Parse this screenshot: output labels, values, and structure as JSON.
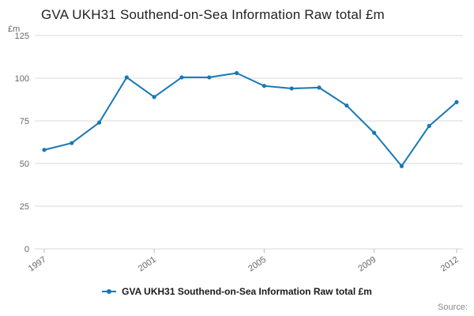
{
  "header": {
    "title": "GVA UKH31 Southend-on-Sea Information Raw total £m"
  },
  "y_unit_label": "£m",
  "source_label": "Source:",
  "chart_data": {
    "type": "line",
    "title": "GVA UKH31 Southend-on-Sea Information Raw total £m",
    "x": [
      1997,
      1998,
      1999,
      2000,
      2001,
      2002,
      2003,
      2004,
      2005,
      2006,
      2007,
      2008,
      2009,
      2010,
      2011,
      2012
    ],
    "series": [
      {
        "name": "GVA UKH31 Southend-on-Sea Information Raw total £m",
        "values": [
          58,
          62,
          74,
          100.5,
          89,
          100.5,
          100.5,
          103,
          95.5,
          94,
          94.5,
          84,
          68,
          48.5,
          72,
          86
        ]
      }
    ],
    "xticks": [
      1997,
      2001,
      2005,
      2009,
      2012
    ],
    "yticks": [
      0,
      25,
      50,
      75,
      100,
      125
    ],
    "ylim": [
      0,
      125
    ],
    "xlabel": "",
    "ylabel": "£m",
    "grid": "horizontal",
    "legend_position": "bottom",
    "line_color": "#1878b4",
    "grid_color": "#d9d9d9",
    "tick_color": "#666666"
  }
}
